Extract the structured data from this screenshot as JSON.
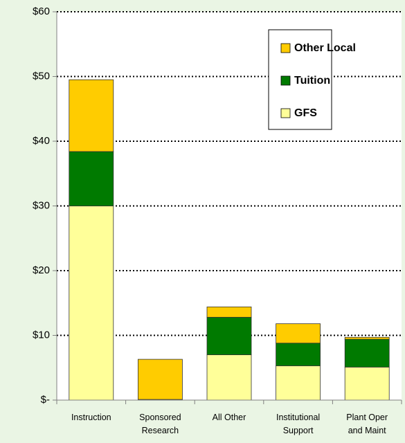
{
  "chart_data": {
    "type": "stacked_bar",
    "categories": [
      "Instruction",
      "Sponsored Research",
      "All Other",
      "Institutional Support",
      "Plant Oper and Maint"
    ],
    "series": [
      {
        "name": "GFS",
        "color": "#ffff99",
        "values": [
          30.0,
          0,
          7.0,
          5.3,
          5.1
        ]
      },
      {
        "name": "Tuition",
        "color": "#007a00",
        "values": [
          8.4,
          0.1,
          5.8,
          3.5,
          4.3
        ]
      },
      {
        "name": "Other Local",
        "color": "#ffcc00",
        "values": [
          11.1,
          6.2,
          1.6,
          3.0,
          0.3
        ]
      }
    ],
    "ylim": [
      0,
      60
    ],
    "yticks": [
      {
        "value": 0,
        "label": "$-"
      },
      {
        "value": 10,
        "label": "$10"
      },
      {
        "value": 20,
        "label": "$20"
      },
      {
        "value": 30,
        "label": "$30"
      },
      {
        "value": 40,
        "label": "$40"
      },
      {
        "value": 50,
        "label": "$50"
      },
      {
        "value": 60,
        "label": "$60"
      }
    ],
    "grid": true
  }
}
